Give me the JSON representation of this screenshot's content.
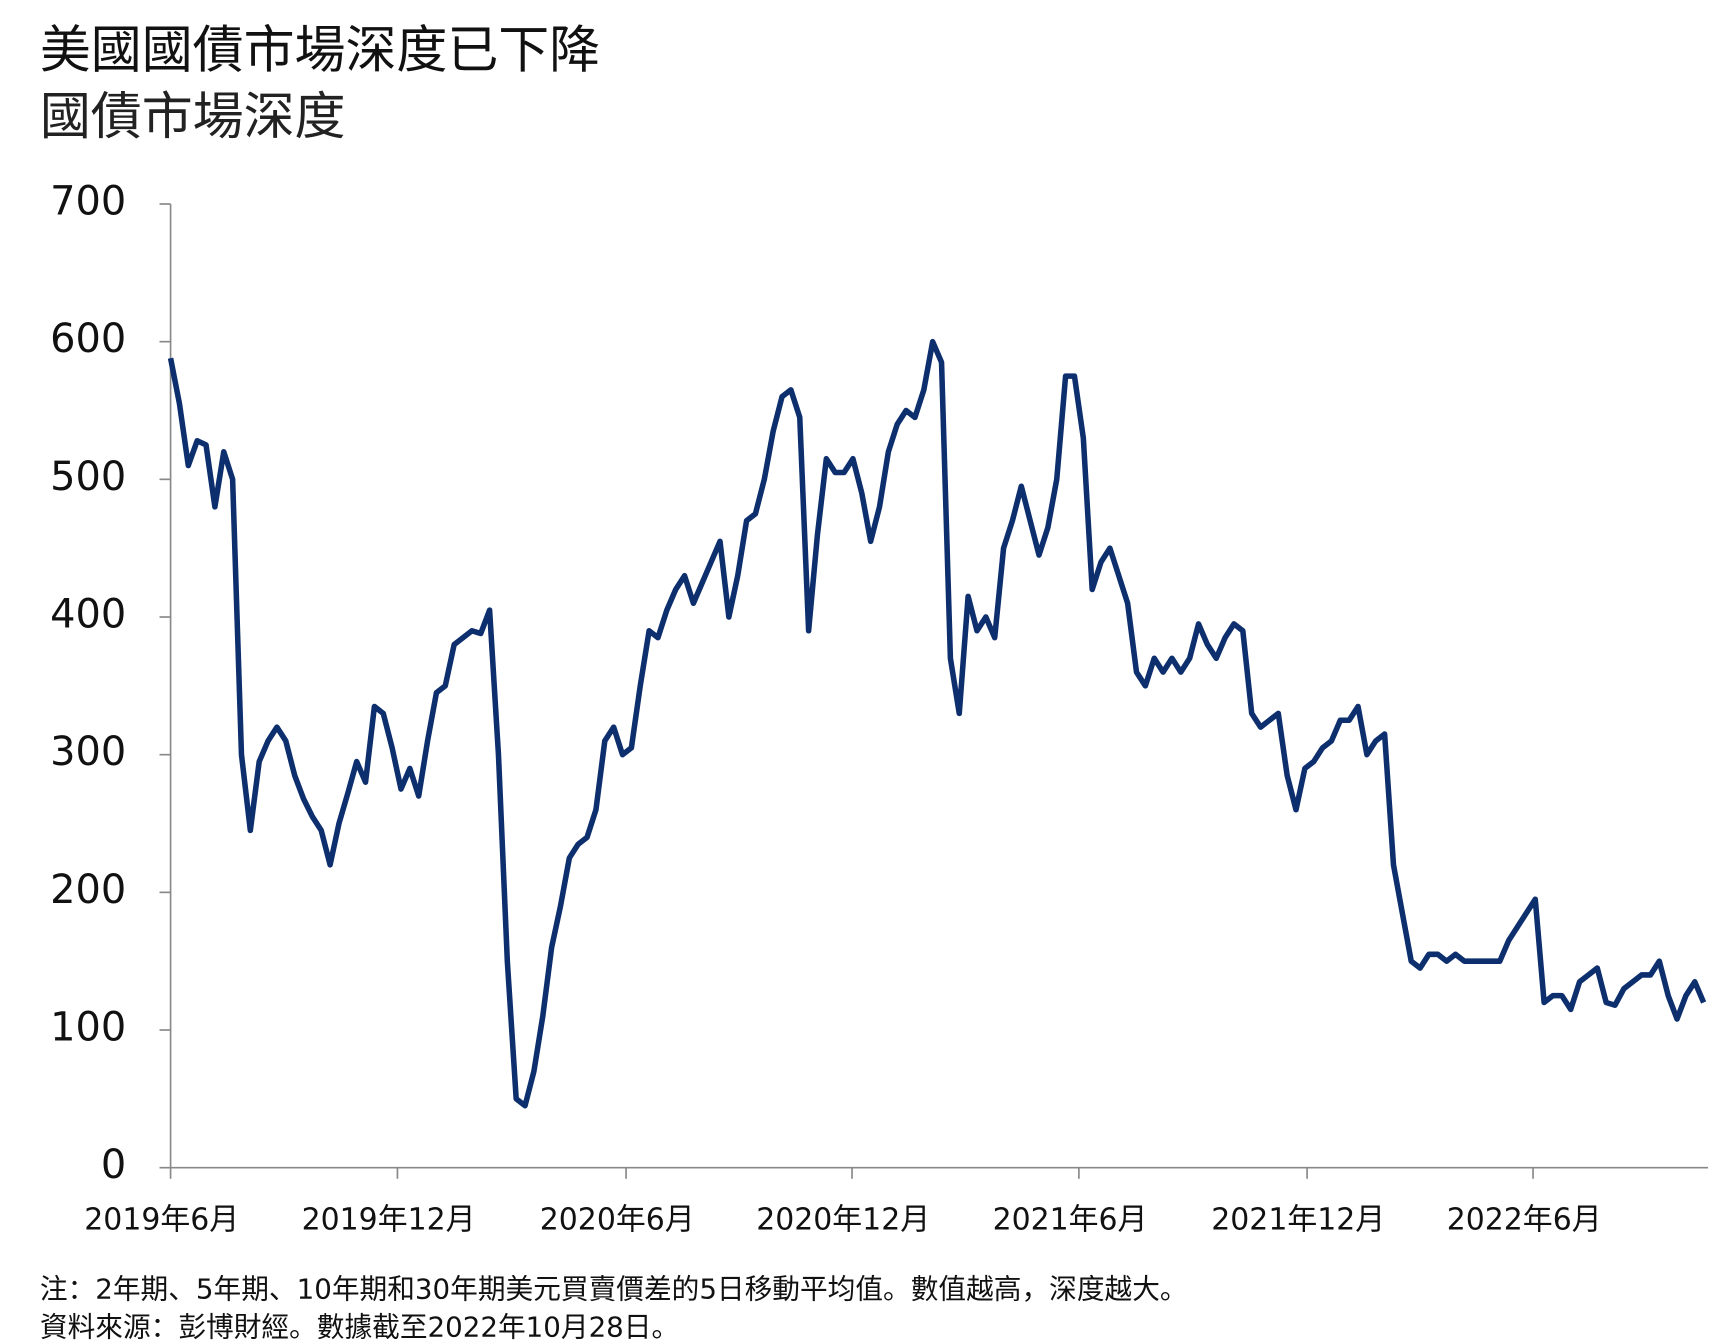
{
  "chart_data": {
    "type": "line",
    "title": "美國國債市場深度已下降",
    "subtitle": "國債市場深度",
    "notes": [
      "注：2年期、5年期、10年期和30年期美元買賣價差的5日移動平均值。數值越高，深度越大。",
      "資料來源：彭博財經。數據截至2022年10月28日。"
    ],
    "color": "#0d2f6e",
    "values": [
      588,
      555,
      510,
      528,
      525,
      480,
      520,
      500,
      300,
      245,
      295,
      310,
      320,
      310,
      285,
      268,
      255,
      245,
      220,
      250,
      272,
      295,
      280,
      335,
      330,
      305,
      275,
      290,
      270,
      310,
      345,
      350,
      380,
      385,
      390,
      388,
      405,
      300,
      150,
      50,
      45,
      70,
      110,
      160,
      190,
      225,
      235,
      240,
      260,
      310,
      320,
      300,
      305,
      350,
      390,
      385,
      405,
      420,
      430,
      410,
      425,
      440,
      455,
      400,
      430,
      470,
      475,
      500,
      535,
      560,
      565,
      545,
      390,
      460,
      515,
      505,
      505,
      515,
      490,
      455,
      480,
      520,
      540,
      550,
      545,
      565,
      600,
      585,
      370,
      330,
      415,
      390,
      400,
      385,
      450,
      470,
      495,
      470,
      445,
      465,
      500,
      575,
      575,
      530,
      420,
      440,
      450,
      430,
      410,
      360,
      350,
      370,
      360,
      370,
      360,
      370,
      395,
      380,
      370,
      385,
      395,
      390,
      330,
      320,
      325,
      330,
      285,
      260,
      290,
      295,
      305,
      310,
      325,
      325,
      335,
      300,
      310,
      315,
      220,
      185,
      150,
      145,
      155,
      155,
      150,
      155,
      150,
      150,
      150,
      150,
      150,
      165,
      175,
      185,
      195,
      120,
      125,
      125,
      115,
      135,
      140,
      145,
      120,
      118,
      130,
      135,
      140,
      140,
      150,
      125,
      108,
      125,
      135,
      120
    ],
    "ylim": [
      0,
      700
    ],
    "yticks": [
      0,
      100,
      200,
      300,
      400,
      500,
      600,
      700
    ],
    "xlim": [
      0,
      173.5
    ],
    "xticks": [
      {
        "value": 0,
        "label": "2019年6月"
      },
      {
        "value": 25.6,
        "label": "2019年12月"
      },
      {
        "value": 51.4,
        "label": "2020年6月"
      },
      {
        "value": 76.9,
        "label": "2020年12月"
      },
      {
        "value": 102.5,
        "label": "2021年6月"
      },
      {
        "value": 128.25,
        "label": "2021年12月"
      },
      {
        "value": 153.75,
        "label": "2022年6月"
      }
    ]
  }
}
